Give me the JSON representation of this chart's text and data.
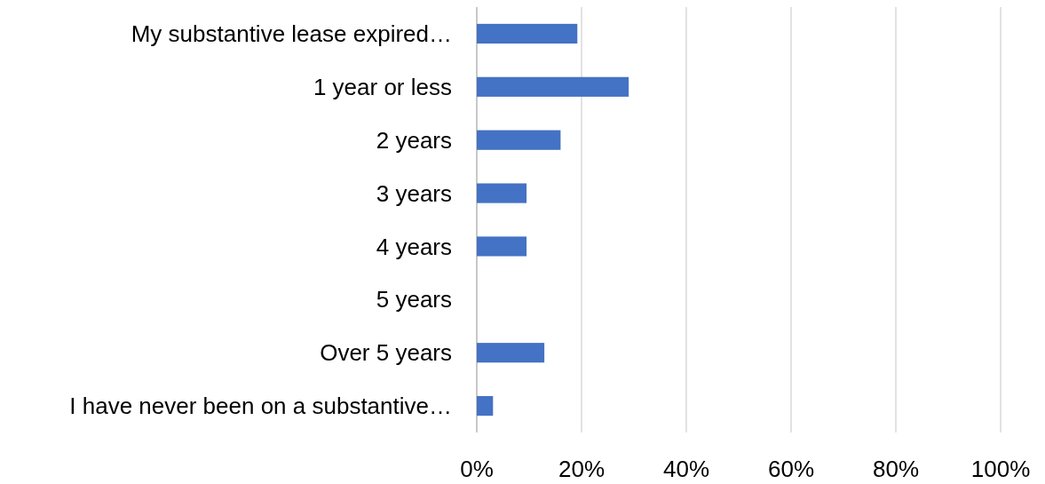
{
  "chart_data": {
    "type": "bar",
    "orientation": "horizontal",
    "categories": [
      "My substantive lease expired…",
      "1 year or less",
      "2 years",
      "3 years",
      "4 years",
      "5 years",
      "Over 5 years",
      "I have never been on a substantive…"
    ],
    "values": [
      19.2,
      29,
      16,
      9.5,
      9.5,
      0,
      12.9,
      3.1
    ],
    "color": "#4472c4",
    "xlim": [
      0,
      100
    ],
    "xticks": [
      {
        "value": 0,
        "label": "0%"
      },
      {
        "value": 20,
        "label": "20%"
      },
      {
        "value": 40,
        "label": "40%"
      },
      {
        "value": 60,
        "label": "60%"
      },
      {
        "value": 80,
        "label": "80%"
      },
      {
        "value": 100,
        "label": "100%"
      }
    ],
    "grid": "x"
  }
}
